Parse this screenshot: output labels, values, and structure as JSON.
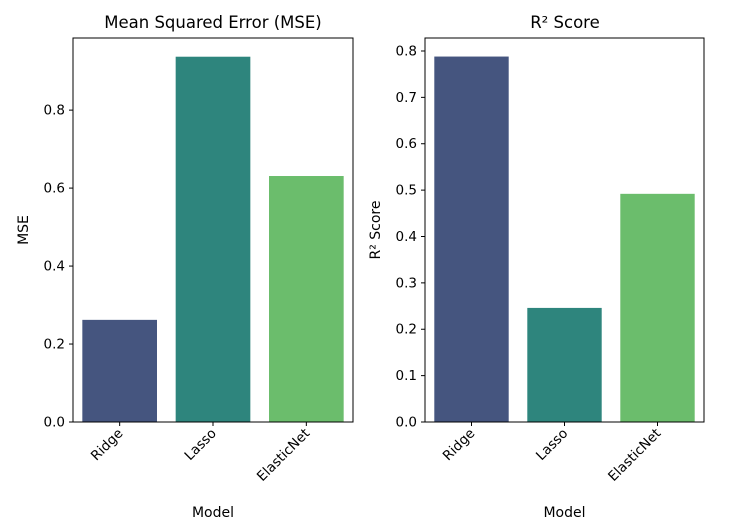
{
  "chart_data": [
    {
      "type": "bar",
      "title": "Mean Squared Error (MSE)",
      "xlabel": "Model",
      "ylabel": "MSE",
      "categories": [
        "Ridge",
        "Lasso",
        "ElasticNet"
      ],
      "values": [
        0.262,
        0.937,
        0.631
      ],
      "ylim": [
        0,
        0.985
      ],
      "yticks": [
        0.0,
        0.2,
        0.4,
        0.6,
        0.8
      ],
      "ytick_labels": [
        "0.0",
        "0.2",
        "0.4",
        "0.6",
        "0.8"
      ],
      "grid": false,
      "colors": [
        "#45557f",
        "#2e857d",
        "#6bbd6c"
      ]
    },
    {
      "type": "bar",
      "title": "R² Score",
      "xlabel": "Model",
      "ylabel": "R² Score",
      "categories": [
        "Ridge",
        "Lasso",
        "ElasticNet"
      ],
      "values": [
        0.788,
        0.246,
        0.492
      ],
      "ylim": [
        0,
        0.828
      ],
      "yticks": [
        0.0,
        0.1,
        0.2,
        0.3,
        0.4,
        0.5,
        0.6,
        0.7,
        0.8
      ],
      "ytick_labels": [
        "0.0",
        "0.1",
        "0.2",
        "0.3",
        "0.4",
        "0.5",
        "0.6",
        "0.7",
        "0.8"
      ],
      "grid": false,
      "colors": [
        "#45557f",
        "#2e857d",
        "#6bbd6c"
      ]
    }
  ]
}
